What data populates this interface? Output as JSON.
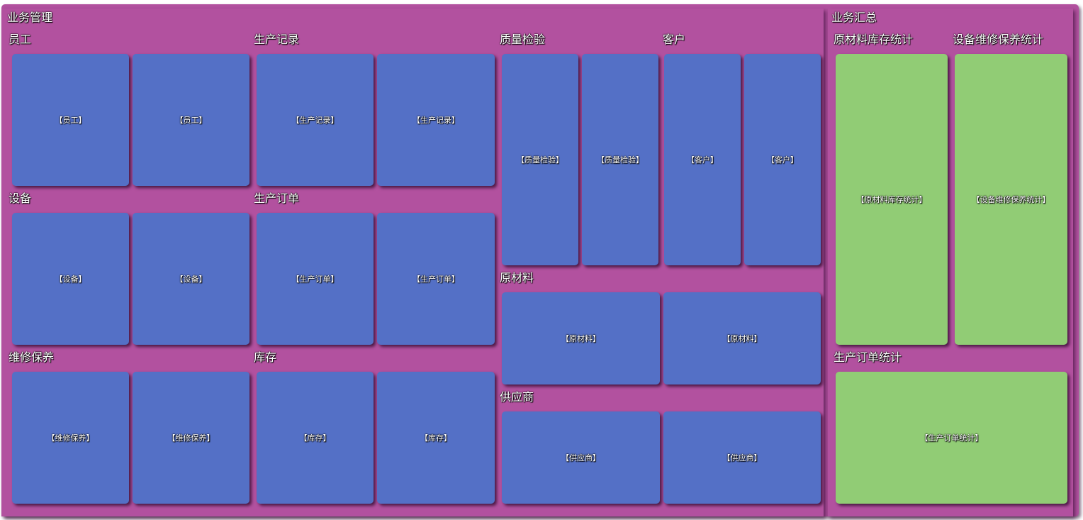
{
  "chart_data": {
    "type": "treemap",
    "children": [
      {
        "name": "业务管理",
        "children": [
          {
            "name": "员工",
            "children": [
              {
                "name": "【员工】"
              },
              {
                "name": "【员工】"
              }
            ]
          },
          {
            "name": "生产记录",
            "children": [
              {
                "name": "【生产记录】"
              },
              {
                "name": "【生产记录】"
              }
            ]
          },
          {
            "name": "设备",
            "children": [
              {
                "name": "【设备】"
              },
              {
                "name": "【设备】"
              }
            ]
          },
          {
            "name": "生产订单",
            "children": [
              {
                "name": "【生产订单】"
              },
              {
                "name": "【生产订单】"
              }
            ]
          },
          {
            "name": "维修保养",
            "children": [
              {
                "name": "【维修保养】"
              },
              {
                "name": "【维修保养】"
              }
            ]
          },
          {
            "name": "库存",
            "children": [
              {
                "name": "【库存】"
              },
              {
                "name": "【库存】"
              }
            ]
          },
          {
            "name": "质量检验",
            "children": [
              {
                "name": "【质量检验】"
              },
              {
                "name": "【质量检验】"
              }
            ]
          },
          {
            "name": "客户",
            "children": [
              {
                "name": "【客户】"
              },
              {
                "name": "【客户】"
              }
            ]
          },
          {
            "name": "原材料",
            "children": [
              {
                "name": "【原材料】"
              },
              {
                "name": "【原材料】"
              }
            ]
          },
          {
            "name": "供应商",
            "children": [
              {
                "name": "【供应商】"
              },
              {
                "name": "【供应商】"
              }
            ]
          }
        ]
      },
      {
        "name": "业务汇总",
        "children": [
          {
            "name": "原材料库存统计",
            "children": [
              {
                "name": "【原材料库存统计】"
              }
            ]
          },
          {
            "name": "设备维修保养统计",
            "children": [
              {
                "name": "【设备维修保养统计】"
              }
            ]
          },
          {
            "name": "生产订单统计",
            "children": [
              {
                "name": "【生产订单统计】"
              }
            ]
          }
        ]
      }
    ],
    "colors": {
      "container": "#b2519f",
      "group_1": "#5470c6",
      "group_2": "#91cc75"
    }
  }
}
